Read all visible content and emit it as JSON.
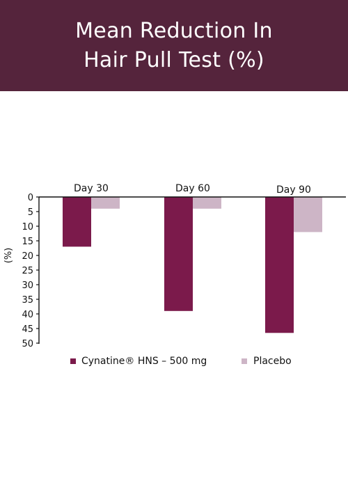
{
  "header": {
    "title_line1": "Mean Reduction In",
    "title_line2": "Hair Pull Test (%)"
  },
  "colors": {
    "header_bg": "#55243c",
    "series_primary": "#7b1a4b",
    "series_secondary": "#cdb5c6"
  },
  "chart_data": {
    "type": "bar",
    "orientation": "vertical-inverted",
    "title": "Mean Reduction In Hair Pull Test (%)",
    "xlabel": "",
    "ylabel": "(%)",
    "ylim": [
      0,
      50
    ],
    "y_inverted": true,
    "yticks": [
      0,
      5,
      10,
      15,
      20,
      25,
      30,
      35,
      40,
      45,
      50
    ],
    "grid": false,
    "legend_position": "bottom",
    "categories": [
      "Day 30",
      "Day 60",
      "Day 90"
    ],
    "series": [
      {
        "name": "Cynatine® HNS – 500 mg",
        "color": "#7b1a4b",
        "values": [
          17,
          39,
          46.5
        ]
      },
      {
        "name": "Placebo",
        "color": "#cdb5c6",
        "values": [
          4,
          4,
          12
        ]
      }
    ]
  }
}
